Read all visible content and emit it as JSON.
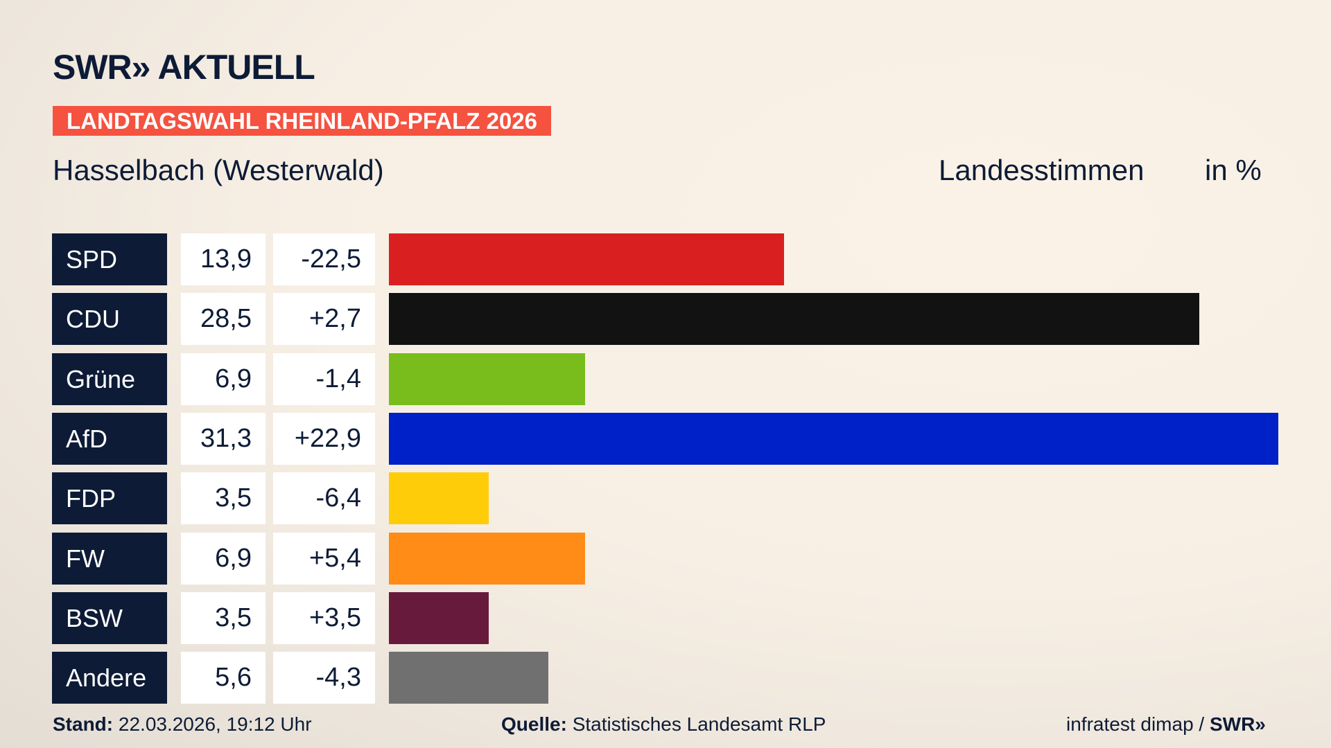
{
  "header": {
    "logo": "SWR» AKTUELL",
    "banner": "LANDTAGSWAHL RHEINLAND-PFALZ 2026",
    "subtitle": "Hasselbach (Westerwald)",
    "measure": "Landesstimmen",
    "unit": "in %"
  },
  "chart_data": {
    "type": "bar",
    "orientation": "horizontal",
    "categories": [
      "SPD",
      "CDU",
      "Grüne",
      "AfD",
      "FDP",
      "FW",
      "BSW",
      "Andere"
    ],
    "values": [
      13.9,
      28.5,
      6.9,
      31.3,
      3.5,
      6.9,
      3.5,
      5.6
    ],
    "value_labels": [
      "13,9",
      "28,5",
      "6,9",
      "31,3",
      "3,5",
      "6,9",
      "3,5",
      "5,6"
    ],
    "change_labels": [
      "-22,5",
      "+2,7",
      "-1,4",
      "+22,9",
      "-6,4",
      "+5,4",
      "+3,5",
      "-4,3"
    ],
    "changes": [
      -22.5,
      2.7,
      -1.4,
      22.9,
      -6.4,
      5.4,
      3.5,
      -4.3
    ],
    "colors": [
      "#d91f20",
      "#121212",
      "#78bd1c",
      "#0020c8",
      "#ffcc0a",
      "#ff8c17",
      "#681a3c",
      "#707070"
    ],
    "title": "Hasselbach (Westerwald)",
    "ylabel": "Landesstimmen in %",
    "grid": false,
    "legend": "none"
  },
  "footer": {
    "stand_label": "Stand:",
    "stand": "22.03.2026, 19:12 Uhr",
    "quelle_label": "Quelle:",
    "quelle": "Statistisches Landesamt RLP",
    "credit": "infratest dimap / ",
    "credit_logo": "SWR»"
  }
}
